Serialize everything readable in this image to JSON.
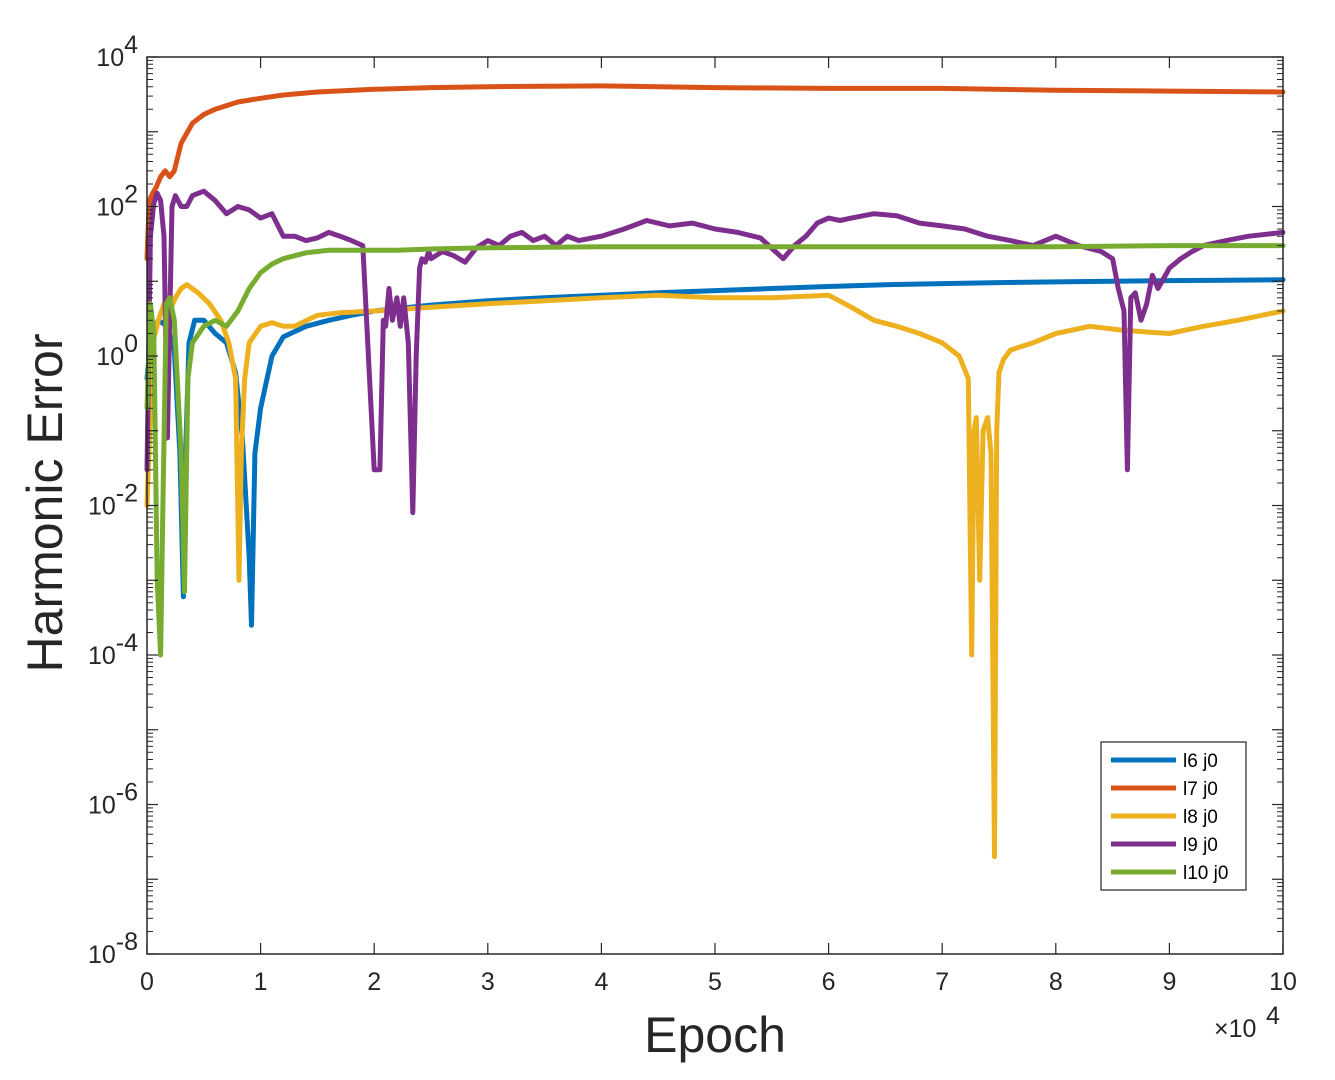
{
  "chart_data": {
    "type": "line",
    "xlabel": "Epoch",
    "ylabel": "Harmonic Error",
    "x_multiplier_label": "×10",
    "x_multiplier_exponent": "4",
    "xlim": [
      0,
      100000
    ],
    "ylim": [
      1e-08,
      10000
    ],
    "yscale": "log",
    "x_ticks": [
      0,
      10000,
      20000,
      30000,
      40000,
      50000,
      60000,
      70000,
      80000,
      90000,
      100000
    ],
    "x_tick_labels": [
      "0",
      "1",
      "2",
      "3",
      "4",
      "5",
      "6",
      "7",
      "8",
      "9",
      "10"
    ],
    "y_tick_exponents": [
      -8,
      -6,
      -4,
      -2,
      0,
      2,
      4
    ],
    "y_tick_labels": [
      {
        "base": "10",
        "exp": "-8"
      },
      {
        "base": "10",
        "exp": "-6"
      },
      {
        "base": "10",
        "exp": "-4"
      },
      {
        "base": "10",
        "exp": "-2"
      },
      {
        "base": "10",
        "exp": "0"
      },
      {
        "base": "10",
        "exp": "2"
      },
      {
        "base": "10",
        "exp": "4"
      }
    ],
    "legend_position": "lower-right",
    "grid": false,
    "series": [
      {
        "name": "l6 j0",
        "color": "#0072BD",
        "x": [
          0,
          400,
          1000,
          1800,
          2400,
          2900,
          3200,
          3400,
          3700,
          4200,
          5000,
          6000,
          7000,
          7800,
          8400,
          9000,
          9200,
          9500,
          10000,
          11000,
          12000,
          14000,
          16000,
          18000,
          20000,
          25000,
          30000,
          35000,
          40000,
          45000,
          50000,
          55000,
          60000,
          65000,
          70000,
          75000,
          80000,
          85000,
          90000,
          95000,
          100000
        ],
        "y": [
          0.5,
          2.0,
          3.0,
          2.5,
          1.2,
          0.05,
          0.0006,
          0.05,
          1.5,
          3.0,
          3.0,
          2.0,
          1.5,
          0.6,
          0.08,
          0.002,
          0.00025,
          0.05,
          0.2,
          1.0,
          1.8,
          2.5,
          3.0,
          3.5,
          4.0,
          4.8,
          5.5,
          6.0,
          6.5,
          7.0,
          7.5,
          8.0,
          8.5,
          9.0,
          9.3,
          9.6,
          9.8,
          10.0,
          10.2,
          10.3,
          10.5
        ]
      },
      {
        "name": "l7 j0",
        "color": "#D95319",
        "x": [
          0,
          200,
          500,
          800,
          1200,
          1600,
          2000,
          2400,
          3000,
          4000,
          5000,
          6000,
          8000,
          10000,
          12000,
          15000,
          20000,
          25000,
          30000,
          40000,
          50000,
          60000,
          70000,
          80000,
          90000,
          100000
        ],
        "y": [
          20,
          120,
          150,
          180,
          250,
          300,
          250,
          300,
          700,
          1300,
          1700,
          2000,
          2500,
          2800,
          3100,
          3400,
          3700,
          3900,
          4000,
          4100,
          3900,
          3800,
          3800,
          3600,
          3500,
          3400
        ]
      },
      {
        "name": "l8 j0",
        "color": "#EDB120",
        "x": [
          0,
          500,
          1000,
          1500,
          2000,
          2500,
          3000,
          3500,
          4500,
          5500,
          6500,
          7200,
          7800,
          8100,
          8300,
          8600,
          9000,
          10000,
          11000,
          12000,
          13000,
          15000,
          17000,
          20000,
          25000,
          30000,
          40000,
          45000,
          50000,
          55000,
          60000,
          62000,
          64000,
          66000,
          68000,
          70000,
          71500,
          72300,
          72600,
          72800,
          73000,
          73300,
          73600,
          74000,
          74300,
          74600,
          74800,
          75000,
          75400,
          76000,
          78000,
          80000,
          83000,
          86000,
          90000,
          93000,
          96000,
          100000
        ],
        "y": [
          0.01,
          1.5,
          3.0,
          5.0,
          4.0,
          6.0,
          8.0,
          9.0,
          7.0,
          5.0,
          3.0,
          1.5,
          0.5,
          0.001,
          0.05,
          0.5,
          1.5,
          2.5,
          2.8,
          2.5,
          2.5,
          3.5,
          3.8,
          4.0,
          4.5,
          5.0,
          6.0,
          6.5,
          6.0,
          6.0,
          6.5,
          4.5,
          3.0,
          2.5,
          2.0,
          1.5,
          1.0,
          0.5,
          0.0001,
          0.1,
          0.15,
          0.001,
          0.1,
          0.15,
          0.05,
          2e-07,
          0.1,
          0.6,
          0.9,
          1.2,
          1.5,
          2.0,
          2.5,
          2.2,
          2.0,
          2.5,
          3.0,
          4.0
        ]
      },
      {
        "name": "l9 j0",
        "color": "#7E2F8E",
        "x": [
          0,
          300,
          600,
          900,
          1200,
          1500,
          1800,
          2200,
          2500,
          3000,
          3500,
          4000,
          5000,
          6000,
          7000,
          8000,
          9000,
          10000,
          11000,
          12000,
          13000,
          14000,
          15000,
          16000,
          17000,
          18000,
          19000,
          20000,
          20500,
          20800,
          21000,
          21300,
          21600,
          22000,
          22300,
          22600,
          23000,
          23400,
          23700,
          24000,
          24200,
          24500,
          24800,
          25000,
          26000,
          27000,
          28000,
          29000,
          30000,
          31000,
          32000,
          33000,
          34000,
          35000,
          36000,
          37000,
          38000,
          40000,
          42000,
          44000,
          46000,
          48000,
          50000,
          52000,
          54000,
          56000,
          57000,
          58000,
          59000,
          60000,
          61000,
          62000,
          64000,
          66000,
          68000,
          70000,
          72000,
          74000,
          76000,
          78000,
          80000,
          82000,
          84000,
          85000,
          85500,
          86000,
          86300,
          86600,
          87000,
          87500,
          88000,
          88500,
          89000,
          90000,
          91000,
          92000,
          93000,
          95000,
          97000,
          100000
        ],
        "y": [
          0.03,
          40,
          110,
          150,
          120,
          40,
          0.08,
          100,
          140,
          100,
          100,
          140,
          160,
          120,
          80,
          100,
          90,
          70,
          80,
          40,
          40,
          35,
          38,
          45,
          40,
          35,
          30,
          0.03,
          0.03,
          3.0,
          2.5,
          8.0,
          3.0,
          6.0,
          2.5,
          6.0,
          1.5,
          0.008,
          1.0,
          15,
          20,
          18,
          25,
          20,
          25,
          22,
          18,
          28,
          35,
          30,
          40,
          45,
          35,
          40,
          30,
          40,
          35,
          40,
          50,
          65,
          55,
          60,
          50,
          45,
          38,
          20,
          30,
          40,
          60,
          70,
          65,
          70,
          80,
          75,
          60,
          55,
          50,
          40,
          35,
          30,
          40,
          30,
          25,
          20,
          8.0,
          4.0,
          0.03,
          6.0,
          7.0,
          3.0,
          5.0,
          12,
          8.0,
          15,
          20,
          25,
          30,
          35,
          40,
          45
        ]
      },
      {
        "name": "l10 j0",
        "color": "#77AC30",
        "x": [
          0,
          300,
          600,
          900,
          1200,
          1400,
          1700,
          2000,
          2400,
          3000,
          3300,
          3600,
          4000,
          5000,
          6000,
          7000,
          8000,
          9000,
          10000,
          11000,
          12000,
          13000,
          14000,
          15000,
          16000,
          18000,
          20000,
          22000,
          25000,
          30000,
          40000,
          50000,
          60000,
          70000,
          80000,
          90000,
          100000
        ],
        "y": [
          0.2,
          5.0,
          2.0,
          0.001,
          0.0001,
          0.01,
          5.0,
          6.0,
          3.0,
          0.05,
          0.0007,
          0.5,
          1.5,
          2.5,
          3.0,
          2.5,
          4.0,
          8.0,
          13,
          17,
          20,
          22,
          24,
          25,
          26,
          26,
          26,
          26,
          27,
          28,
          29,
          29,
          29,
          29,
          29,
          30,
          30
        ]
      }
    ]
  }
}
